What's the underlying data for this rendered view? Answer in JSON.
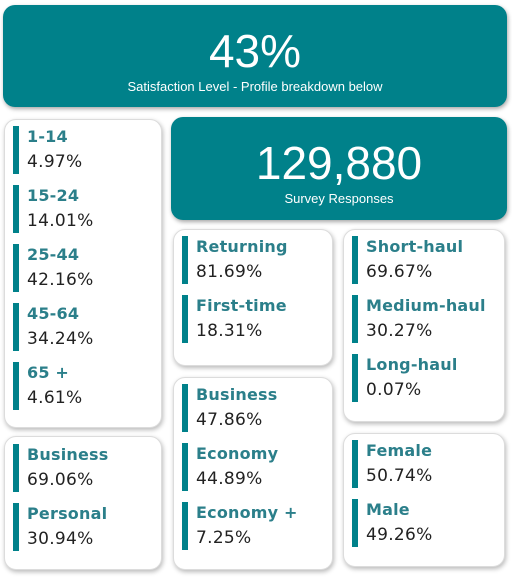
{
  "satisfaction": {
    "value": "43%",
    "caption": "Satisfaction Level - Profile breakdown below"
  },
  "responses": {
    "value": "129,880",
    "caption": "Survey Responses"
  },
  "age_groups": [
    {
      "label": "1-14",
      "value": "4.97%"
    },
    {
      "label": "15-24",
      "value": "14.01%"
    },
    {
      "label": "25-44",
      "value": "42.16%"
    },
    {
      "label": "45-64",
      "value": "34.24%"
    },
    {
      "label": "65 +",
      "value": "4.61%"
    }
  ],
  "travel_type": [
    {
      "label": "Business",
      "value": "69.06%"
    },
    {
      "label": "Personal",
      "value": "30.94%"
    }
  ],
  "customer_type": [
    {
      "label": "Returning",
      "value": "81.69%"
    },
    {
      "label": "First-time",
      "value": "18.31%"
    }
  ],
  "class": [
    {
      "label": "Business",
      "value": "47.86%"
    },
    {
      "label": "Economy",
      "value": "44.89%"
    },
    {
      "label": "Economy +",
      "value": "7.25%"
    }
  ],
  "flight_distance": [
    {
      "label": "Short-haul",
      "value": "69.67%"
    },
    {
      "label": "Medium-haul",
      "value": "30.27%"
    },
    {
      "label": "Long-haul",
      "value": "0.07%"
    }
  ],
  "gender": [
    {
      "label": "Female",
      "value": "50.74%"
    },
    {
      "label": "Male",
      "value": "49.26%"
    }
  ],
  "colors": {
    "accent": "#00818a",
    "label": "#2b7f8a",
    "value": "#222222"
  }
}
